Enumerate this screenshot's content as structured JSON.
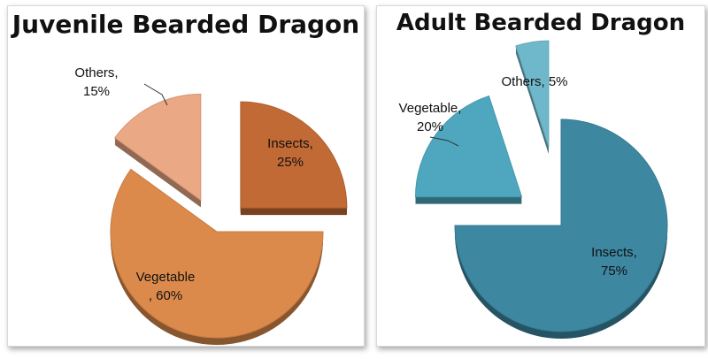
{
  "chart_data": [
    {
      "type": "pie",
      "title": "Juvenile Bearded Dragon",
      "slices": [
        {
          "name": "Insects",
          "value": 25,
          "color": "#c16a35",
          "label_lines": [
            "Insects,",
            "25%"
          ]
        },
        {
          "name": "Vegetable",
          "value": 60,
          "color": "#dc8a4c",
          "label_lines": [
            "Vegetable",
            ", 60%"
          ]
        },
        {
          "name": "Others",
          "value": 15,
          "color": "#eaa884",
          "label_lines": [
            "Others,",
            "15%"
          ]
        }
      ],
      "exploded": true,
      "style": "3d"
    },
    {
      "type": "pie",
      "title": "Adult Bearded Dragon",
      "slices": [
        {
          "name": "Insects",
          "value": 75,
          "color": "#3d87a1",
          "label_lines": [
            "Insects,",
            "75%"
          ]
        },
        {
          "name": "Vegetable",
          "value": 20,
          "color": "#4ea7bf",
          "label_lines": [
            "Vegetable,",
            "20%"
          ]
        },
        {
          "name": "Others",
          "value": 5,
          "color": "#6fb8cb",
          "label_lines": [
            "Others, 5%"
          ]
        }
      ],
      "exploded": true,
      "style": "3d"
    }
  ]
}
